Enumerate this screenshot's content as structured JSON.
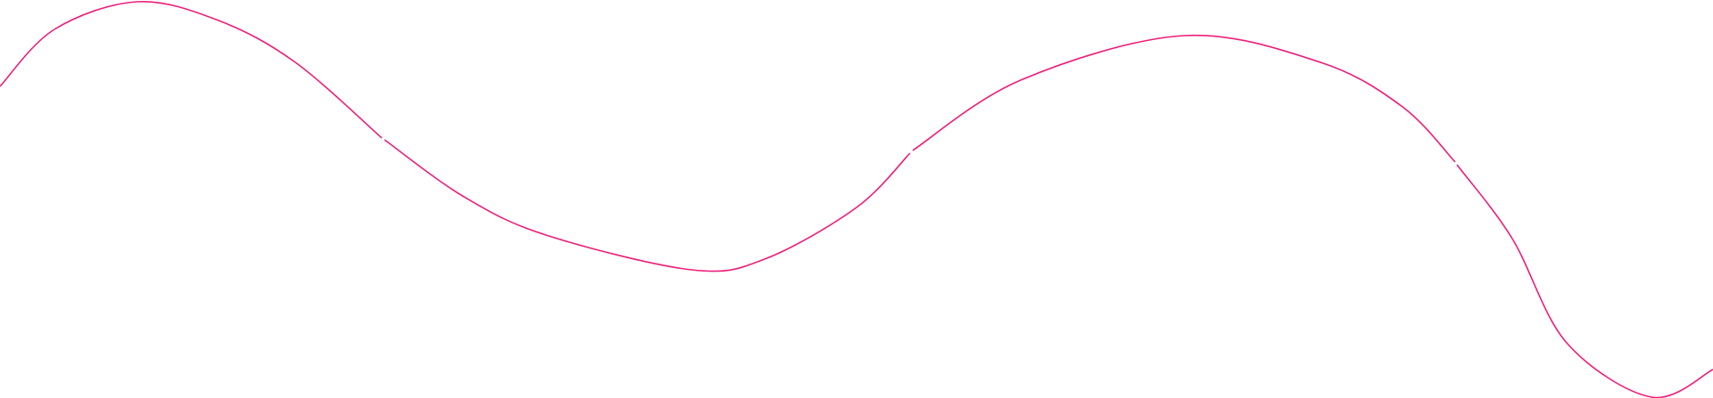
{
  "decoration": {
    "type": "wavy-line",
    "stroke_color": "#ec1e79",
    "background_color": "#ffffff",
    "segment_count": 4
  }
}
